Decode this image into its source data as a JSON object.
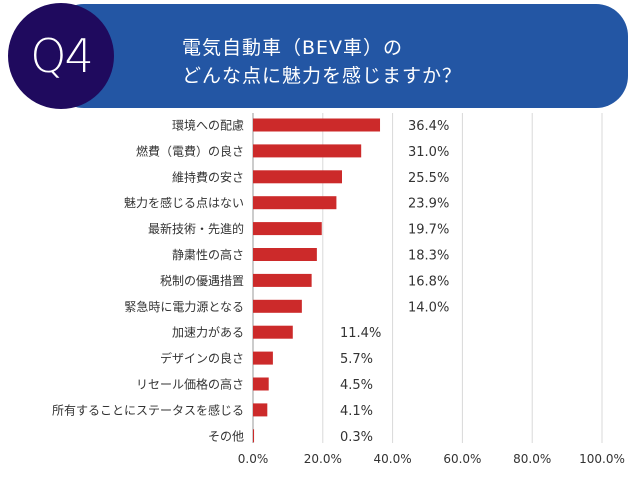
{
  "header": {
    "badge": "Q4",
    "title_line1": "電気自動車（BEV車）の",
    "title_line2": "どんな点に魅力を感じますか？",
    "colors": {
      "banner": "#2356a4",
      "badge": "#1f0a5e"
    }
  },
  "chart_data": {
    "type": "bar",
    "orientation": "horizontal",
    "categories": [
      "環境への配慮",
      "燃費（電費）の良さ",
      "維持費の安さ",
      "魅力を感じる点はない",
      "最新技術・先進的",
      "静粛性の高さ",
      "税制の優遇措置",
      "緊急時に電力源となる",
      "加速力がある",
      "デザインの良さ",
      "リセール価格の高さ",
      "所有することにステータスを感じる",
      "その他"
    ],
    "values": [
      36.4,
      31.0,
      25.5,
      23.9,
      19.7,
      18.3,
      16.8,
      14.0,
      11.4,
      5.7,
      4.5,
      4.1,
      0.3
    ],
    "data_labels": [
      "36.4%",
      "31.0%",
      "25.5%",
      "23.9%",
      "19.7%",
      "18.3%",
      "16.8%",
      "14.0%",
      "11.4%",
      "5.7%",
      "4.5%",
      "4.1%",
      "0.3%"
    ],
    "xlim": [
      0,
      100
    ],
    "x_ticks": [
      "0.0%",
      "20.0%",
      "40.0%",
      "60.0%",
      "80.0%",
      "100.0%"
    ],
    "grid": true,
    "bar_color": "#cc2a2a",
    "title": "",
    "xlabel": "",
    "ylabel": ""
  }
}
